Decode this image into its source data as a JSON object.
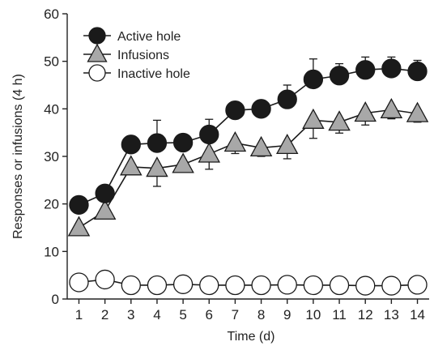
{
  "chart_data": {
    "type": "line",
    "xlabel": "Time (d)",
    "ylabel": "Responses or infusions (4 h)",
    "x": [
      1,
      2,
      3,
      4,
      5,
      6,
      7,
      8,
      9,
      10,
      11,
      12,
      13,
      14
    ],
    "xlim": [
      0.55,
      14.45
    ],
    "ylim": [
      0,
      60
    ],
    "yticks": [
      0,
      10,
      20,
      30,
      40,
      50,
      60
    ],
    "grid": false,
    "legend_position": "top-left",
    "series": [
      {
        "name": "Active hole",
        "marker": "filled-circle",
        "color": "#1a1a1a",
        "values": [
          19.8,
          22.2,
          32.5,
          32.8,
          32.9,
          34.6,
          39.7,
          40.0,
          42.0,
          46.2,
          47.0,
          48.2,
          48.5,
          47.9
        ],
        "errors": [
          1.0,
          1.0,
          1.6,
          4.8,
          1.2,
          3.2,
          1.8,
          1.5,
          3.0,
          4.3,
          2.5,
          2.7,
          2.4,
          2.3
        ]
      },
      {
        "name": "Infusions",
        "marker": "triangle",
        "color": "#a8a8a8",
        "values": [
          15.0,
          18.5,
          27.8,
          27.5,
          28.3,
          30.5,
          32.8,
          31.8,
          32.3,
          37.6,
          37.2,
          39.1,
          39.8,
          39.0
        ],
        "errors": [
          0.8,
          1.0,
          1.6,
          3.8,
          1.6,
          3.2,
          2.2,
          1.8,
          2.8,
          3.8,
          2.3,
          2.5,
          1.9,
          1.8
        ]
      },
      {
        "name": "Inactive hole",
        "marker": "open-circle",
        "color": "#ffffff",
        "values": [
          3.5,
          4.1,
          2.9,
          2.9,
          3.1,
          2.9,
          2.9,
          2.9,
          3.0,
          2.9,
          2.9,
          2.8,
          2.8,
          3.0
        ],
        "errors": [
          0.4,
          0.4,
          0.4,
          0.4,
          0.4,
          0.4,
          0.4,
          0.4,
          0.4,
          0.4,
          0.4,
          0.4,
          0.4,
          0.4
        ]
      }
    ]
  }
}
